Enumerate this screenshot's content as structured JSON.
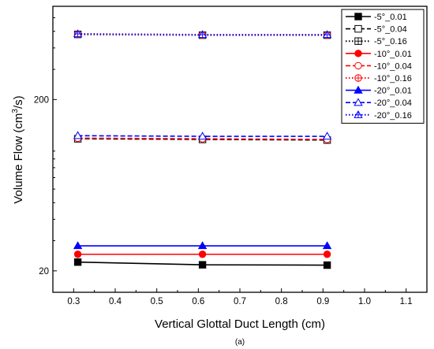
{
  "caption": "(a)",
  "chart_data": {
    "type": "line",
    "xlabel": "Vertical Glottal Duct Length (cm)",
    "ylabel_main": "Volume Flow (cm",
    "ylabel_sup": "3",
    "ylabel_tail": "/s)",
    "xlim": [
      0.25,
      1.15
    ],
    "ylim": [
      15,
      700
    ],
    "yscale": "log",
    "xticks": [
      "0.3",
      "0.4",
      "0.5",
      "0.6",
      "0.7",
      "0.8",
      "0.9",
      "1.0",
      "1.1"
    ],
    "yticks": [
      "20",
      "200"
    ],
    "legend_position": "top-right",
    "x": [
      0.31,
      0.61,
      0.91
    ],
    "series": [
      {
        "name": "-5°_0.01",
        "color": "#000000",
        "marker": "square-filled",
        "dash": "solid",
        "values": [
          22.5,
          21.7,
          21.6
        ]
      },
      {
        "name": "-5°_0.04",
        "color": "#000000",
        "marker": "square-open",
        "dash": "dashed",
        "values": [
          118,
          117,
          116
        ]
      },
      {
        "name": "-5°_0.16",
        "color": "#000000",
        "marker": "square-crossed",
        "dash": "dotted",
        "values": [
          480,
          475,
          475
        ]
      },
      {
        "name": "-10°_0.01",
        "color": "#ff0000",
        "marker": "circle-filled",
        "dash": "solid",
        "values": [
          25,
          25,
          25
        ]
      },
      {
        "name": "-10°_0.04",
        "color": "#ff0000",
        "marker": "circle-open",
        "dash": "dashed",
        "values": [
          119,
          118,
          117
        ]
      },
      {
        "name": "-10°_0.16",
        "color": "#ff0000",
        "marker": "circle-crossed",
        "dash": "dotted",
        "values": [
          481,
          476,
          476
        ]
      },
      {
        "name": "-20°_0.01",
        "color": "#0000ff",
        "marker": "triangle-filled",
        "dash": "solid",
        "values": [
          28,
          28,
          28
        ]
      },
      {
        "name": "-20°_0.04",
        "color": "#0000ff",
        "marker": "triangle-open",
        "dash": "dashed",
        "values": [
          123,
          122,
          122
        ]
      },
      {
        "name": "-20°_0.16",
        "color": "#0000ff",
        "marker": "triangle-crossed",
        "dash": "dotted",
        "values": [
          483,
          478,
          478
        ]
      }
    ]
  }
}
